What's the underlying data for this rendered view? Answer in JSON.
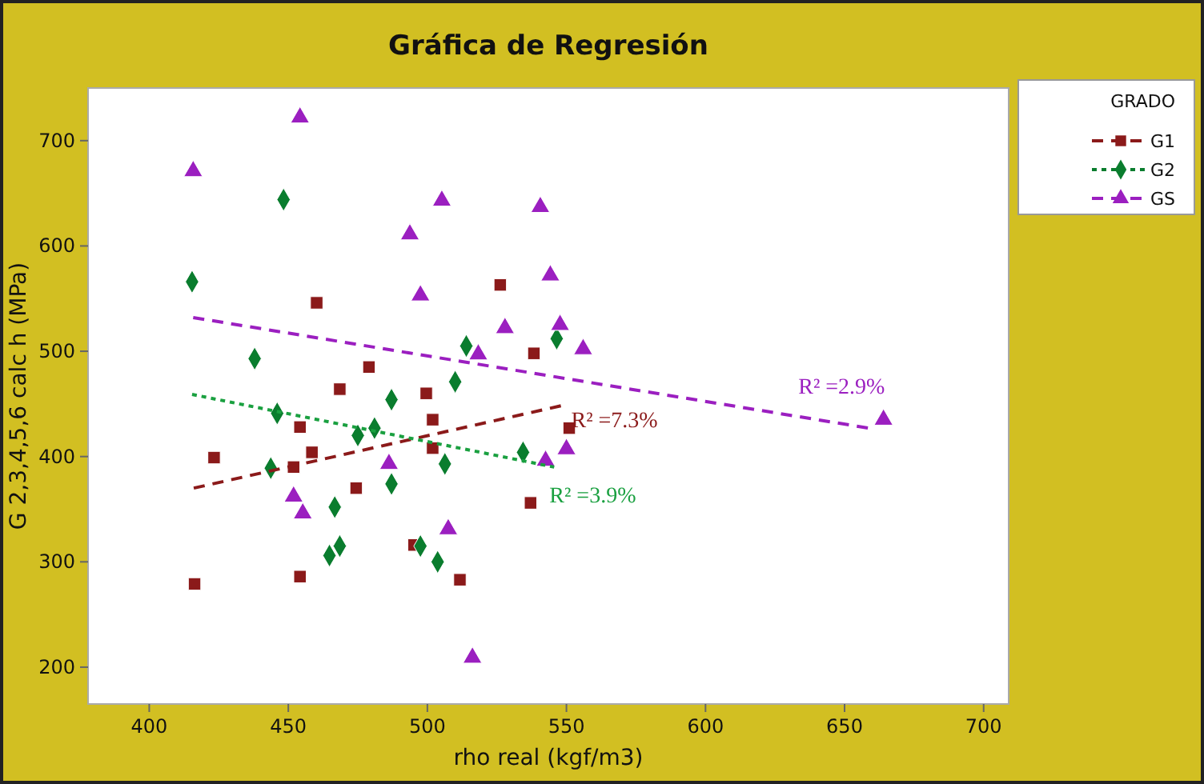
{
  "chart_data": {
    "type": "scatter",
    "title": "Gráfica de Regresión",
    "xlabel": "rho real (kgf/m3)",
    "ylabel": "G 2,3,4,5,6  calc h (MPa)",
    "legend_title": "GRADO",
    "legend": "right",
    "grid": false,
    "xlim": [
      378,
      709
    ],
    "ylim": [
      165,
      750
    ],
    "xticks": [
      400,
      450,
      500,
      550,
      600,
      650,
      700
    ],
    "yticks": [
      200,
      300,
      400,
      500,
      600,
      700
    ],
    "series": [
      {
        "name": "G1",
        "marker": "square",
        "line_style": "dashed",
        "color": "#8b1a1a",
        "x": [
          416.3,
          423.3,
          454.2,
          454.2,
          451.9,
          458.5,
          460.2,
          468.5,
          474.4,
          479,
          495.2,
          499.6,
          501.9,
          501.9,
          511.7,
          526.2,
          538.3,
          551,
          537.1
        ],
        "values": [
          279,
          399,
          286,
          428,
          390,
          404,
          546,
          464,
          370,
          485,
          316,
          460,
          435,
          408,
          283,
          563,
          498,
          427,
          356
        ]
      },
      {
        "name": "G2",
        "marker": "diamond",
        "line_style": "dotted",
        "color": "#0a7d2e",
        "x": [
          415.4,
          448.3,
          437.9,
          446,
          443.7,
          466.7,
          464.8,
          468.5,
          475,
          481,
          487.1,
          487.1,
          497.5,
          503.7,
          506.3,
          510,
          514,
          546.5,
          534.4
        ],
        "values": [
          566,
          644,
          493,
          441,
          389,
          352,
          306,
          315,
          420,
          427,
          454,
          374,
          315,
          300,
          393,
          471,
          505,
          512,
          404
        ]
      },
      {
        "name": "GS",
        "marker": "triangle",
        "line_style": "dashed",
        "color": "#9b1fc0",
        "x": [
          415.8,
          454.2,
          505.2,
          493.7,
          497.5,
          518.3,
          486.2,
          451.9,
          455.2,
          507.5,
          516.2,
          540.6,
          544.2,
          527.9,
          547.7,
          556,
          550,
          542.5,
          664
        ],
        "values": [
          671,
          722,
          643,
          611,
          553,
          497,
          393,
          362,
          346,
          331,
          209,
          637,
          572,
          522,
          525,
          502,
          407,
          396,
          435
        ]
      },
      {
        "type": "line",
        "marker": "none",
        "line_style": "dashed",
        "color": "#8b1a1a",
        "x": [
          416,
          549.4
        ],
        "values": [
          370,
          449
        ]
      },
      {
        "type": "line",
        "marker": "none",
        "line_style": "dotted",
        "color": "#1aa040",
        "x": [
          415.4,
          545.6
        ],
        "values": [
          459,
          390
        ]
      },
      {
        "type": "line",
        "marker": "none",
        "line_style": "dashed",
        "color": "#9b1fc0",
        "x": [
          415.8,
          661
        ],
        "values": [
          532,
          426
        ]
      }
    ],
    "annotations": [
      {
        "text": "R² =7.3%",
        "x": 549.4,
        "y": 449
      },
      {
        "text": "R² =3.9%",
        "x": 545.6,
        "y": 390
      },
      {
        "text": "R² =2.9%",
        "x": 661,
        "y": 426
      }
    ]
  }
}
